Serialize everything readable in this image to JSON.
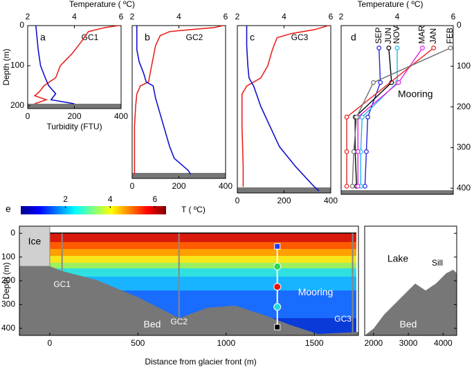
{
  "chart_data": [
    {
      "type": "profile",
      "panel": "a",
      "label": "GC1",
      "xlim": [
        0,
        400
      ],
      "xticks": [
        0,
        200,
        400
      ],
      "x2lim": [
        2,
        6
      ],
      "x2ticks": [
        2,
        4,
        6
      ],
      "ylim": [
        0,
        207
      ],
      "yticks": [
        0,
        100,
        200
      ],
      "xlabel": "Turbidity (FTU)",
      "x2label": "Temperature ( ºC)",
      "ylabel": "Depth (m)",
      "series": [
        {
          "color": "#e8221e",
          "axis": "x2",
          "depth": [
            0,
            5,
            15,
            40,
            70,
            100,
            130,
            150,
            165,
            175,
            185,
            195
          ],
          "values": [
            5.9,
            5.3,
            4.6,
            4.3,
            3.9,
            3.4,
            3.2,
            2.7,
            2.5,
            2.3,
            2.8,
            2.3
          ]
        },
        {
          "color": "#1010d0",
          "depth": [
            0,
            30,
            60,
            100,
            130,
            150,
            170,
            185,
            195
          ],
          "values": [
            35,
            40,
            45,
            55,
            75,
            90,
            120,
            100,
            200
          ]
        }
      ]
    },
    {
      "type": "profile",
      "panel": "b",
      "label": "GC2",
      "xlim": [
        0,
        400
      ],
      "xticks": [
        0,
        200,
        400
      ],
      "x2lim": [
        2,
        6
      ],
      "x2ticks": [
        2,
        4,
        6
      ],
      "ylim": [
        0,
        380
      ],
      "series": [
        {
          "color": "#e8221e",
          "axis": "x2",
          "depth": [
            0,
            5,
            10,
            15,
            25,
            50,
            80,
            110,
            140,
            150,
            170,
            200,
            250,
            300,
            350,
            370
          ],
          "values": [
            5.9,
            5.5,
            4.5,
            3.6,
            3.2,
            3.0,
            2.9,
            2.8,
            2.7,
            2.35,
            2.2,
            2.15,
            2.1,
            2.1,
            2.1,
            2.1
          ]
        },
        {
          "color": "#1010d0",
          "depth": [
            0,
            30,
            60,
            90,
            120,
            140,
            150,
            180,
            220,
            260,
            300,
            330,
            350,
            360,
            370
          ],
          "values": [
            20,
            20,
            20,
            30,
            50,
            60,
            90,
            100,
            120,
            140,
            160,
            180,
            220,
            240,
            250
          ]
        }
      ]
    },
    {
      "type": "profile",
      "panel": "c",
      "label": "GC3",
      "xlim": [
        0,
        400
      ],
      "xticks": [
        0,
        200,
        400
      ],
      "x2lim": [
        2,
        6
      ],
      "x2ticks": [
        2,
        4,
        6
      ],
      "ylim": [
        0,
        415
      ],
      "series": [
        {
          "color": "#e8221e",
          "axis": "x2",
          "depth": [
            0,
            10,
            20,
            30,
            60,
            100,
            130,
            150,
            170,
            250,
            350,
            400
          ],
          "values": [
            5.9,
            5.3,
            4.3,
            3.7,
            3.5,
            3.3,
            3.0,
            2.4,
            2.2,
            2.2,
            2.25,
            2.25
          ]
        },
        {
          "color": "#1010d0",
          "depth": [
            0,
            50,
            100,
            130,
            150,
            200,
            250,
            300,
            350,
            400,
            410
          ],
          "values": [
            40,
            40,
            45,
            50,
            70,
            100,
            140,
            180,
            250,
            330,
            350
          ]
        }
      ]
    },
    {
      "type": "mooring",
      "panel": "d",
      "annotation": "Mooring",
      "x2lim": [
        2,
        6
      ],
      "x2ticks": [
        2,
        4,
        6
      ],
      "x2label": "Temperature ( ºC)",
      "ylim": [
        0,
        415
      ],
      "yticks": [
        0,
        100,
        200,
        300,
        400
      ],
      "series": [
        {
          "name": "SEP",
          "color": "#2020e0",
          "depth": [
            55,
            140,
            225,
            310,
            395
          ],
          "values": [
            3.35,
            3.4,
            2.95,
            2.9,
            2.85
          ]
        },
        {
          "name": "JUN",
          "color": "#000000",
          "depth": [
            55,
            140,
            225,
            310,
            395
          ],
          "values": [
            3.7,
            3.8,
            2.5,
            2.5,
            2.55
          ]
        },
        {
          "name": "NOV",
          "color": "#1ab8e8",
          "depth": [
            55,
            140,
            225,
            310,
            395
          ],
          "values": [
            4.0,
            4.0,
            2.75,
            2.7,
            2.7
          ]
        },
        {
          "name": "MAR",
          "color": "#e020e0",
          "depth": [
            55,
            140,
            225,
            310,
            395
          ],
          "values": [
            4.9,
            4.05,
            2.6,
            2.6,
            2.6
          ]
        },
        {
          "name": "JAN",
          "color": "#e8221e",
          "depth": [
            55,
            225,
            310,
            395
          ],
          "values": [
            5.3,
            2.2,
            2.2,
            2.2
          ]
        },
        {
          "name": "FEB",
          "color": "#707070",
          "depth": [
            55,
            140,
            225,
            310,
            395
          ],
          "values": [
            5.9,
            3.15,
            2.55,
            2.45,
            2.4
          ]
        }
      ]
    },
    {
      "type": "section",
      "panel": "e",
      "xlabel": "Distance from glacier front (m)",
      "ylabel": "Depth (m)",
      "xlim": [
        -172,
        1750
      ],
      "xticks": [
        0,
        500,
        1000,
        1500
      ],
      "xlim_right": [
        1745,
        4390
      ],
      "xticks_right": [
        2000,
        3000,
        4000
      ],
      "ylim": [
        -30,
        430
      ],
      "yticks": [
        0,
        100,
        200,
        300,
        400
      ],
      "colorbar": {
        "clim": [
          0,
          6.5
        ],
        "ticks": [
          2,
          4,
          6
        ],
        "label": "T ( ºC)"
      },
      "profiles": {
        "x": [
          70,
          733,
          1717
        ],
        "labels": [
          "GC1",
          "GC2",
          "GC3"
        ]
      },
      "mooring": {
        "x": 1290,
        "depths": [
          55,
          140,
          225,
          310,
          395
        ],
        "colors": [
          "#1a3cff",
          "#22dd55",
          "#ee1111",
          "#22dddd",
          "#000000"
        ],
        "markers": [
          "square",
          "circle",
          "circle",
          "circle",
          "square"
        ],
        "label": "Mooring"
      },
      "annotations": [
        "Ice",
        "Bed",
        "Lake",
        "Sill",
        "Bed"
      ]
    }
  ]
}
